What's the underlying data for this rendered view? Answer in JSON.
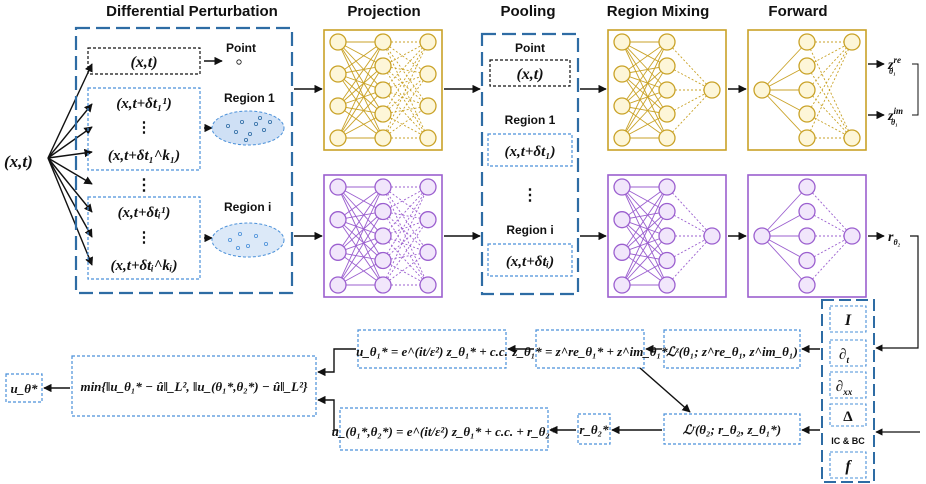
{
  "headers": {
    "perturbation": "Differential Perturbation",
    "projection": "Projection",
    "pooling": "Pooling",
    "mixing": "Region Mixing",
    "forward": "Forward"
  },
  "input": "(x,t)",
  "point": {
    "expr": "(x,t)",
    "label": "Point"
  },
  "region1": {
    "expr_top": "(x,t+δt₁¹)",
    "expr_bot": "(x,t+δt₁^k₁)",
    "label": "Region 1"
  },
  "regioni": {
    "expr_top": "(x,t+δtᵢ¹)",
    "expr_bot": "(x,t+δtᵢ^kᵢ)",
    "label": "Region i"
  },
  "pooling": {
    "point_label": "Point",
    "point_expr": "(x,t)",
    "region1_label": "Region 1",
    "region1_expr": "(x,t+δt₁)",
    "regioni_label": "Region i",
    "regioni_expr": "(x,t+δtᵢ)"
  },
  "outputs": {
    "z_re": "z",
    "z_re_sup": "re",
    "z_im": "z",
    "z_im_sup": "im",
    "sub": "θ₁",
    "r": "r",
    "r_sub": "θ₂"
  },
  "side_ops": {
    "I": "I",
    "dt": "∂",
    "dxx": "∂",
    "delta": "Δ",
    "icbc": "IC & BC",
    "f": "f"
  },
  "bottom": {
    "u1": "u_θ₁* = e^(it/ε²) z_θ₁* + c.c.",
    "z1": "z_θ₁* = z^re_θ₁* + z^im_θ₁*",
    "Lz": "ℒᶻ(θ₁; z^re_θ₁, z^im_θ₁)",
    "u2": "u_(θ₁*,θ₂*) = e^(it/ε²) z_θ₁* + c.c. + r_θ₂*",
    "r2": "r_θ₂*",
    "Lr": "ℒʳ(θ₂; r_θ₂, z_θ₁*)",
    "min": "min{‖u_θ₁* − û‖_L², ‖u_(θ₁*,θ₂*) − û‖_L²}",
    "final": "u_θ*"
  },
  "colors": {
    "box_blue": "#2e6ca4",
    "gold": "#c9a227",
    "purple": "#9b5fcf",
    "light_blue": "#4a90d9"
  }
}
